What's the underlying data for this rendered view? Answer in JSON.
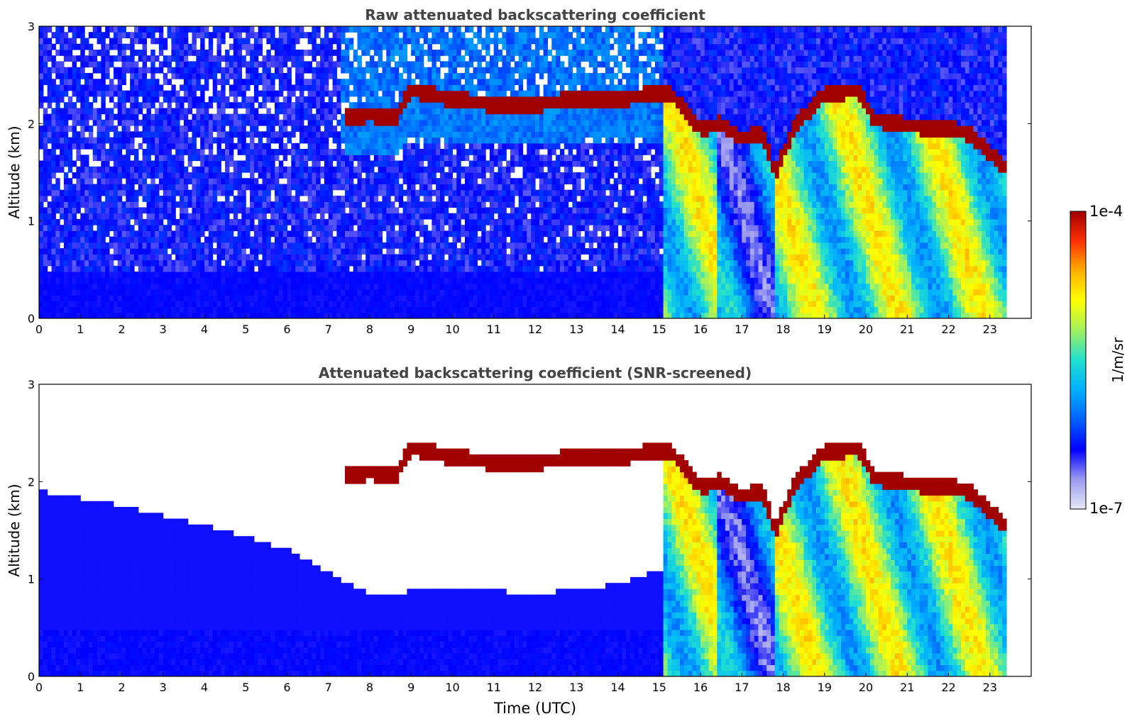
{
  "chart_data": [
    {
      "type": "heatmap",
      "title": "Raw attenuated backscattering coefficient",
      "xlabel": "",
      "ylabel": "Altitude (km)",
      "xlim": [
        0,
        24
      ],
      "ylim": [
        0,
        3
      ],
      "xticks": [
        0,
        1,
        2,
        3,
        4,
        5,
        6,
        7,
        8,
        9,
        10,
        11,
        12,
        13,
        14,
        15,
        16,
        17,
        18,
        19,
        20,
        21,
        22,
        23
      ],
      "yticks": [
        0,
        1,
        2,
        3
      ],
      "data_end_time": 23.4,
      "noise_level": 0.22,
      "cloud_layer": [
        {
          "x": 7.3,
          "y": 2.05
        },
        {
          "x": 8.0,
          "y": 2.1
        },
        {
          "x": 8.6,
          "y": 2.05
        },
        {
          "x": 9.0,
          "y": 2.35
        },
        {
          "x": 10.0,
          "y": 2.25
        },
        {
          "x": 11.0,
          "y": 2.2
        },
        {
          "x": 12.0,
          "y": 2.2
        },
        {
          "x": 13.0,
          "y": 2.25
        },
        {
          "x": 14.0,
          "y": 2.25
        },
        {
          "x": 14.8,
          "y": 2.3
        },
        {
          "x": 15.3,
          "y": 2.3
        },
        {
          "x": 16.0,
          "y": 1.95
        },
        {
          "x": 16.5,
          "y": 2.0
        },
        {
          "x": 17.0,
          "y": 1.85
        },
        {
          "x": 17.5,
          "y": 1.9
        },
        {
          "x": 17.8,
          "y": 1.5
        },
        {
          "x": 18.3,
          "y": 2.0
        },
        {
          "x": 19.0,
          "y": 2.3
        },
        {
          "x": 19.8,
          "y": 2.35
        },
        {
          "x": 20.2,
          "y": 2.05
        },
        {
          "x": 21.0,
          "y": 1.98
        },
        {
          "x": 22.0,
          "y": 1.95
        },
        {
          "x": 22.5,
          "y": 1.9
        },
        {
          "x": 23.0,
          "y": 1.7
        },
        {
          "x": 23.4,
          "y": 1.55
        }
      ]
    },
    {
      "type": "heatmap",
      "title": "Attenuated backscattering coefficient (SNR-screened)",
      "xlabel": "Time (UTC)",
      "ylabel": "Altitude (km)",
      "xlim": [
        0,
        24
      ],
      "ylim": [
        0,
        3
      ],
      "xticks": [
        0,
        1,
        2,
        3,
        4,
        5,
        6,
        7,
        8,
        9,
        10,
        11,
        12,
        13,
        14,
        15,
        16,
        17,
        18,
        19,
        20,
        21,
        22,
        23
      ],
      "yticks": [
        0,
        1,
        2,
        3
      ],
      "data_end_time": 23.4,
      "noise_level": 0.0,
      "screen_top": [
        {
          "x": 0,
          "y": 1.9
        },
        {
          "x": 2,
          "y": 1.75
        },
        {
          "x": 4,
          "y": 1.55
        },
        {
          "x": 6,
          "y": 1.3
        },
        {
          "x": 7.2,
          "y": 1.0
        },
        {
          "x": 8,
          "y": 0.85
        },
        {
          "x": 10,
          "y": 0.9
        },
        {
          "x": 12,
          "y": 0.85
        },
        {
          "x": 14,
          "y": 0.95
        },
        {
          "x": 15,
          "y": 1.1
        }
      ]
    }
  ],
  "colorbar": {
    "label": "1/m/sr",
    "max_label": "1e-4",
    "min_label": "1e-7",
    "colors": [
      "#e8e8f8",
      "#9a9af0",
      "#0000ff",
      "#0060ff",
      "#00b0ff",
      "#20e0d0",
      "#a0f060",
      "#ffff00",
      "#ffb000",
      "#ff3000",
      "#a00000"
    ]
  }
}
